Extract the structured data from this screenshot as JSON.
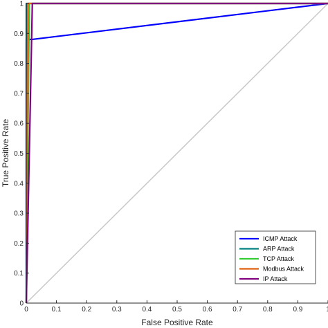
{
  "chart_data": {
    "type": "line",
    "title": "",
    "xlabel": "False Positive Rate",
    "ylabel": "True Positive Rate",
    "xlim": [
      0,
      1
    ],
    "ylim": [
      0,
      1
    ],
    "xticks": [
      "0",
      "0.1",
      "0.2",
      "0.3",
      "0.4",
      "0.5",
      "0.6",
      "0.7",
      "0.8",
      "0.9",
      "1"
    ],
    "yticks": [
      "0",
      "0.1",
      "0.2",
      "0.3",
      "0.4",
      "0.5",
      "0.6",
      "0.7",
      "0.8",
      "0.9",
      "1"
    ],
    "grid": false,
    "legend_position": "bottom-right",
    "series": [
      {
        "name": "ICMP Attack",
        "color": "#0000ff",
        "x": [
          0,
          0,
          0.02,
          1
        ],
        "y": [
          0,
          0.88,
          0.88,
          1
        ]
      },
      {
        "name": "ARP Attack",
        "color": "#008080",
        "x": [
          0,
          0,
          1
        ],
        "y": [
          0,
          1,
          1
        ]
      },
      {
        "name": "TCP Attack",
        "color": "#33cc33",
        "x": [
          0,
          0.01,
          1
        ],
        "y": [
          0,
          1,
          1
        ]
      },
      {
        "name": "Modbus Attack",
        "color": "#e06010",
        "x": [
          0,
          0.005,
          0.005,
          1
        ],
        "y": [
          0,
          0.93,
          1,
          1
        ]
      },
      {
        "name": "IP Attack",
        "color": "#800080",
        "x": [
          0,
          0.02,
          1
        ],
        "y": [
          0,
          1,
          1
        ]
      }
    ],
    "diagonal": {
      "x": [
        0,
        1
      ],
      "y": [
        0,
        1
      ],
      "color": "#c8c8c8"
    }
  }
}
